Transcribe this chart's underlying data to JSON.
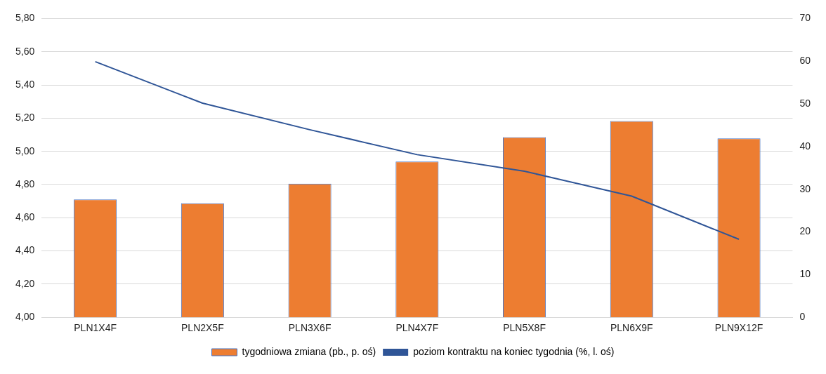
{
  "chart_data": {
    "type": "bar",
    "categories": [
      "PLN1X4F",
      "PLN2X5F",
      "PLN3X6F",
      "PLN4X7F",
      "PLN5X8F",
      "PLN6X9F",
      "PLN9X12F"
    ],
    "series": [
      {
        "name": "tygodniowa zmiana (pb., p. oś)",
        "axis": "y2",
        "color": "#ed7d31",
        "values": [
          27.6,
          26.7,
          31.3,
          36.5,
          42.2,
          46.0,
          41.9
        ]
      },
      {
        "name": "poziom kontraktu na koniec tygodnia (%, l. oś)",
        "type": "line",
        "color": "#2f5597",
        "values": [
          5.54,
          5.29,
          5.13,
          4.98,
          4.88,
          4.73,
          4.47
        ]
      }
    ],
    "ylim": [
      4,
      5.8
    ],
    "yticks": [
      {
        "value": 4,
        "label": "4,00"
      },
      {
        "value": 4.2,
        "label": "4,20"
      },
      {
        "value": 4.4,
        "label": "4,40"
      },
      {
        "value": 4.6,
        "label": "4,60"
      },
      {
        "value": 4.8,
        "label": "4,80"
      },
      {
        "value": 5,
        "label": "5,00"
      },
      {
        "value": 5.2,
        "label": "5,20"
      },
      {
        "value": 5.4,
        "label": "5,40"
      },
      {
        "value": 5.6,
        "label": "5,60"
      },
      {
        "value": 5.8,
        "label": "5,80"
      }
    ],
    "y2lim": [
      0,
      70
    ],
    "y2ticks": [
      0,
      10,
      20,
      30,
      40,
      50,
      60,
      70
    ],
    "grid": "y",
    "legend": "bottom",
    "marker": "none"
  }
}
